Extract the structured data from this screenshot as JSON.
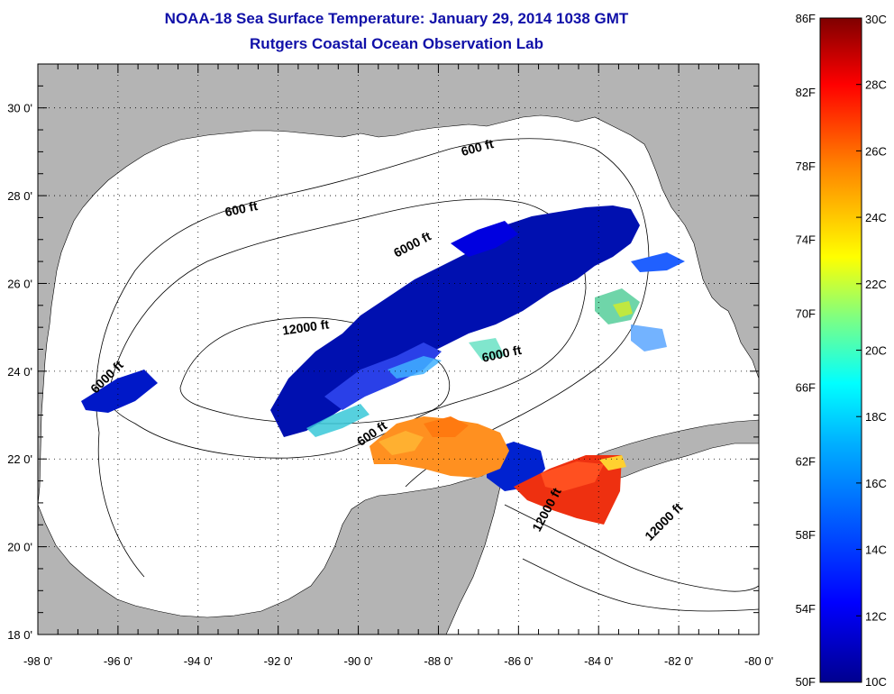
{
  "title": "NOAA-18 Sea Surface Temperature:  January 29, 2014 1038 GMT",
  "subtitle": "Rutgers Coastal Ocean Observation Lab",
  "map": {
    "lon_range": [
      -98,
      -80
    ],
    "lat_range": [
      18,
      31
    ],
    "x_ticks": [
      "-98 0'",
      "-96 0'",
      "-94 0'",
      "-92 0'",
      "-90 0'",
      "-88 0'",
      "-86 0'",
      "-84 0'",
      "-82 0'",
      "-80 0'"
    ],
    "y_ticks": [
      "18 0'",
      "20 0'",
      "22 0'",
      "24 0'",
      "26 0'",
      "28 0'",
      "30 0'"
    ],
    "land_color": "#b4b4b4",
    "ocean_color": "#ffffff",
    "grid": "dotted"
  },
  "contour_labels": [
    {
      "text": "600 ft",
      "lon": -87.0,
      "lat": 29.0
    },
    {
      "text": "600 ft",
      "lon": -92.9,
      "lat": 27.6
    },
    {
      "text": "6000 ft",
      "lon": -88.6,
      "lat": 26.8
    },
    {
      "text": "12000 ft",
      "lon": -91.3,
      "lat": 24.9
    },
    {
      "text": "6000 ft",
      "lon": -86.4,
      "lat": 24.3
    },
    {
      "text": "6000 ft",
      "lon": -96.2,
      "lat": 23.8
    },
    {
      "text": "600 ft",
      "lon": -89.6,
      "lat": 22.5
    },
    {
      "text": "12000 ft",
      "lon": -85.2,
      "lat": 20.8
    },
    {
      "text": "12000 ft",
      "lon": -82.3,
      "lat": 20.5
    }
  ],
  "colorbar": {
    "f_labels": [
      "86F",
      "82F",
      "78F",
      "74F",
      "70F",
      "66F",
      "62F",
      "58F",
      "54F",
      "50F"
    ],
    "c_labels": [
      "30C",
      "28C",
      "26C",
      "24C",
      "22C",
      "20C",
      "18C",
      "16C",
      "14C",
      "12C",
      "10C"
    ],
    "colors": [
      "#7f0000",
      "#ff0000",
      "#ff8000",
      "#ffff00",
      "#80ff80",
      "#00ffff",
      "#0080ff",
      "#0000ff",
      "#00008f"
    ]
  }
}
